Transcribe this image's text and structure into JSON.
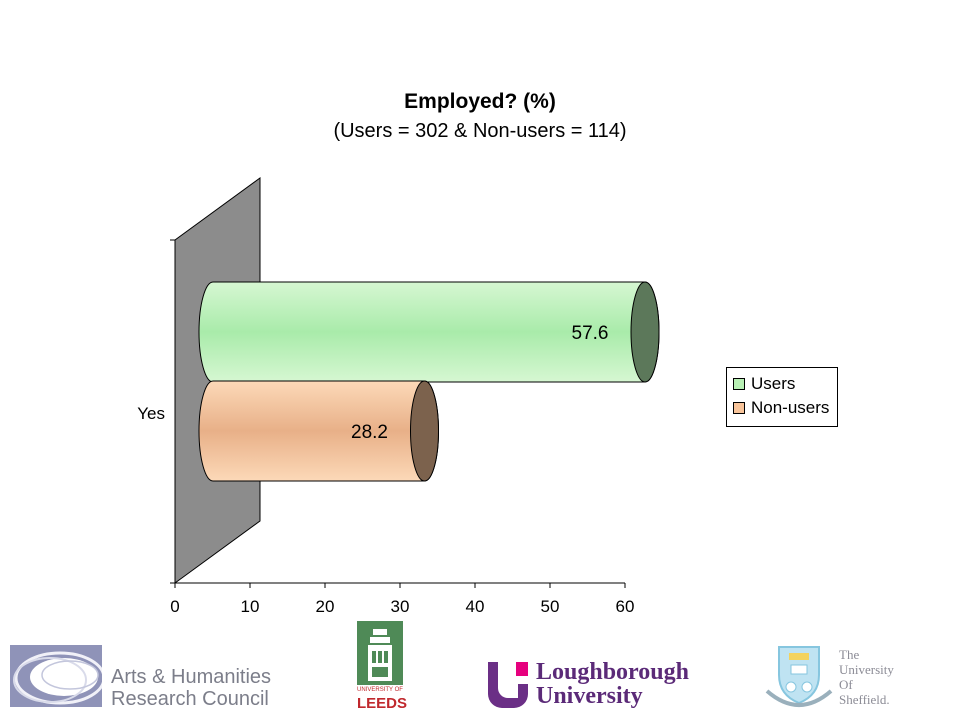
{
  "chart_data": {
    "type": "bar",
    "orientation": "horizontal",
    "three_d": true,
    "title": "Employed? (%)",
    "subtitle": "(Users = 302 & Non-users = 114)",
    "categories": [
      "Yes"
    ],
    "series": [
      {
        "name": "Users",
        "values": [
          57.6
        ],
        "color": "#b8f0b4"
      },
      {
        "name": "Non-users",
        "values": [
          28.2
        ],
        "color": "#f8c49a"
      }
    ],
    "xlim": [
      0,
      60
    ],
    "xticks": [
      "0",
      "10",
      "20",
      "30",
      "40",
      "50",
      "60"
    ],
    "data_labels": [
      "57.6",
      "28.2"
    ],
    "legend_position": "right",
    "grid": false
  },
  "logos": {
    "ahrc_line1": "Arts & Humanities",
    "ahrc_line2": "Research Council",
    "leeds_line1": "UNIVERSITY OF",
    "leeds_line2": "LEEDS",
    "lboro_line1": "Loughborough",
    "lboro_line2": "University",
    "sheffield_line1": "The",
    "sheffield_line2": "University",
    "sheffield_line3": "Of",
    "sheffield_line4": "Sheffield."
  }
}
